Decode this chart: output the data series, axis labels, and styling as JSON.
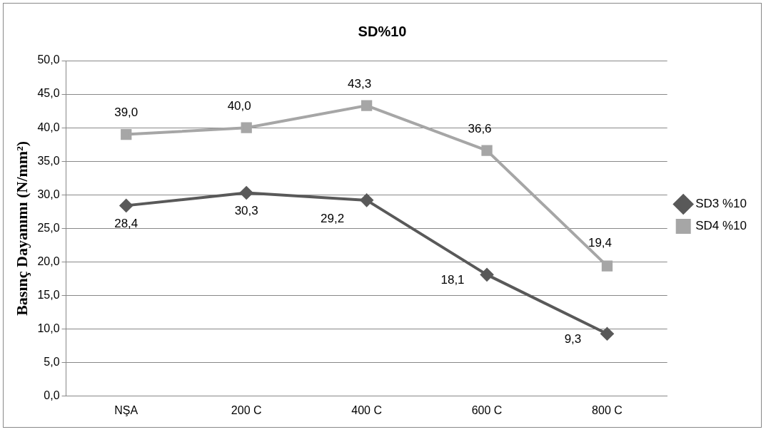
{
  "chart_data": {
    "type": "line",
    "title": "SD%10",
    "ylabel": "Basınç Dayanımı (N/mm²)",
    "categories": [
      "NŞA",
      "200 C",
      "400 C",
      "600 C",
      "800 C"
    ],
    "series": [
      {
        "name": "SD3 %10",
        "color": "#595959",
        "marker": "diamond",
        "values": [
          28.4,
          30.3,
          29.2,
          18.1,
          9.3
        ],
        "value_labels": [
          "28,4",
          "30,3",
          "29,2",
          "18,1",
          "9,3"
        ]
      },
      {
        "name": "SD4 %10",
        "color": "#a6a6a6",
        "marker": "square",
        "values": [
          39.0,
          40.0,
          43.3,
          36.6,
          19.4
        ],
        "value_labels": [
          "39,0",
          "40,0",
          "43,3",
          "36,6",
          "19,4"
        ]
      }
    ],
    "ylim": [
      0,
      50
    ],
    "yticks": [
      {
        "value": 0,
        "label": "0,0"
      },
      {
        "value": 5,
        "label": "5,0"
      },
      {
        "value": 10,
        "label": "10,0"
      },
      {
        "value": 15,
        "label": "15,0"
      },
      {
        "value": 20,
        "label": "20,0"
      },
      {
        "value": 25,
        "label": "25,0"
      },
      {
        "value": 30,
        "label": "30,0"
      },
      {
        "value": 35,
        "label": "35,0"
      },
      {
        "value": 40,
        "label": "40,0"
      },
      {
        "value": 45,
        "label": "45,0"
      },
      {
        "value": 50,
        "label": "50,0"
      }
    ],
    "grid": "y",
    "legend": "right",
    "line_style": "solid"
  }
}
